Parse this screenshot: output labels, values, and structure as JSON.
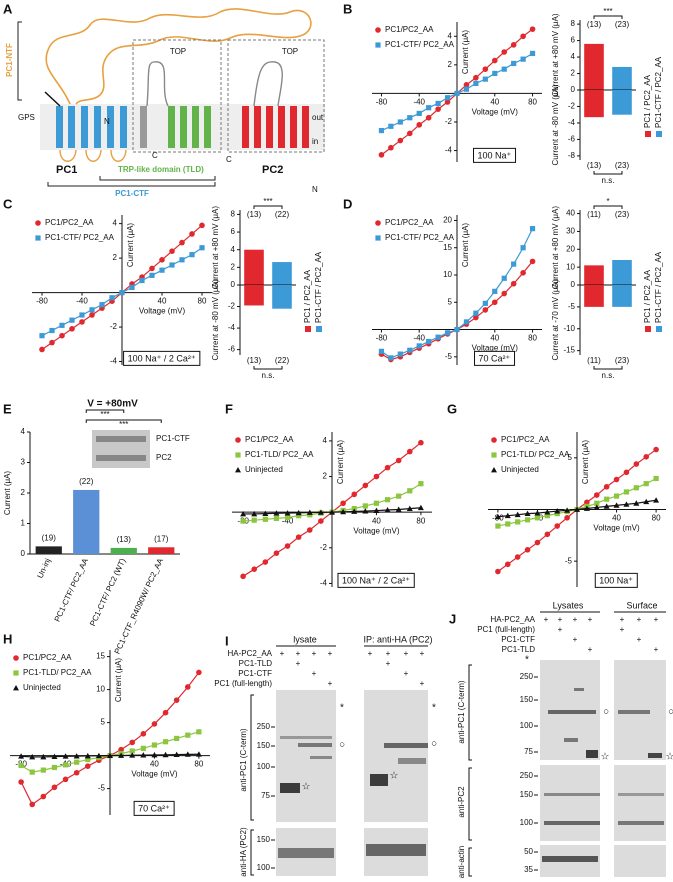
{
  "panel_labels": [
    "A",
    "B",
    "C",
    "D",
    "E",
    "F",
    "G",
    "H",
    "I",
    "J"
  ],
  "diagram": {
    "texts": [
      "PC1-NTF",
      "N",
      "GPS",
      "TOP",
      "TOP",
      "out",
      "in",
      "PC1",
      "PC2",
      "TRP-like domain (TLD)",
      "C",
      "C",
      "N",
      "PC1-CTF"
    ]
  },
  "chart_data": [
    {
      "type": "line",
      "xlabel": "Voltage (mV)",
      "ylabel": "Current (μA)",
      "annotation": "100 Na⁺",
      "xlim": [
        -90,
        90
      ],
      "ylim": [
        -4.8,
        5
      ],
      "xticks": [
        -80,
        -40,
        40,
        80
      ],
      "yticks": [
        -4,
        -2,
        2,
        4
      ],
      "x": [
        -80,
        -70,
        -60,
        -50,
        -40,
        -30,
        -20,
        -10,
        0,
        10,
        20,
        30,
        40,
        50,
        60,
        70,
        80
      ],
      "series": [
        {
          "name": "PC1/PC2_AA",
          "color": "#e0282e",
          "marker": "circle",
          "values": [
            -4.3,
            -3.8,
            -3.3,
            -2.8,
            -2.2,
            -1.7,
            -1.1,
            -0.6,
            0,
            0.6,
            1.1,
            1.7,
            2.3,
            2.9,
            3.4,
            4.0,
            4.5
          ]
        },
        {
          "name": "PC1-CTF/ PC2_AA",
          "color": "#3c9ad6",
          "marker": "square",
          "values": [
            -2.6,
            -2.3,
            -2.0,
            -1.7,
            -1.4,
            -1.0,
            -0.7,
            -0.3,
            0,
            0.3,
            0.7,
            1.0,
            1.4,
            1.7,
            2.1,
            2.4,
            2.8
          ]
        }
      ]
    },
    {
      "type": "bar",
      "ylabel": "Current at +80 mV (μA)",
      "categories": [
        null,
        null
      ],
      "values": [
        5.6,
        2.8
      ],
      "colors": [
        "#e0282e",
        "#3c9ad6"
      ],
      "ylim": [
        0,
        8.5
      ],
      "yticks": [
        0,
        2,
        4,
        6,
        8
      ],
      "n_labels": [
        "(13)",
        "(23)"
      ],
      "significance": "***",
      "legend": [
        {
          "name": "PC1 / PC2_AA",
          "color": "#e0282e"
        },
        {
          "name": "PC1-CTF / PC2_AA",
          "color": "#3c9ad6"
        }
      ]
    },
    {
      "type": "bar",
      "ylabel": "Current at -80 mV (μA)",
      "categories": [
        null,
        null
      ],
      "values": [
        -3.3,
        -3.0
      ],
      "colors": [
        "#e0282e",
        "#3c9ad6"
      ],
      "ylim": [
        -8.5,
        0
      ],
      "yticks": [
        -2,
        -4,
        -6,
        -8
      ],
      "n_labels": [
        "(13)",
        "(23)"
      ],
      "significance": "n.s."
    },
    {
      "type": "line",
      "xlabel": "Voltage (mV)",
      "ylabel": "Current (μA)",
      "annotation": "100 Na⁺ / 2 Ca²⁺",
      "xlim": [
        -90,
        90
      ],
      "ylim": [
        -4.2,
        4.5
      ],
      "xticks": [
        -80,
        -40,
        40,
        80
      ],
      "yticks": [
        -4,
        -2,
        2,
        4
      ],
      "x": [
        -80,
        -70,
        -60,
        -50,
        -40,
        -30,
        -20,
        -10,
        0,
        10,
        20,
        30,
        40,
        50,
        60,
        70,
        80
      ],
      "series": [
        {
          "name": "PC1/PC2_AA",
          "color": "#e0282e",
          "marker": "circle",
          "values": [
            -3.3,
            -2.9,
            -2.5,
            -2.1,
            -1.7,
            -1.3,
            -0.9,
            -0.5,
            0,
            0.5,
            0.9,
            1.4,
            1.9,
            2.4,
            2.9,
            3.4,
            3.9
          ]
        },
        {
          "name": "PC1-CTF/ PC2_AA",
          "color": "#3c9ad6",
          "marker": "square",
          "values": [
            -2.5,
            -2.2,
            -1.9,
            -1.6,
            -1.3,
            -1,
            -0.7,
            -0.3,
            0,
            0.3,
            0.7,
            1,
            1.3,
            1.6,
            1.9,
            2.2,
            2.6
          ]
        }
      ]
    },
    {
      "type": "bar",
      "ylabel": "Current at +80 mV (μA)",
      "categories": [
        null,
        null
      ],
      "values": [
        4.0,
        2.6
      ],
      "colors": [
        "#e0282e",
        "#3c9ad6"
      ],
      "ylim": [
        0,
        8.5
      ],
      "yticks": [
        0,
        2,
        4,
        6,
        8
      ],
      "n_labels": [
        "(13)",
        "(22)"
      ],
      "significance": "***",
      "legend": [
        {
          "name": "PC1 / PC2_AA",
          "color": "#e0282e"
        },
        {
          "name": "PC1-CTF / PC2_AA",
          "color": "#3c9ad6"
        }
      ]
    },
    {
      "type": "bar",
      "ylabel": "Current at -80 mV (μA)",
      "categories": [
        null,
        null
      ],
      "values": [
        -1.9,
        -2.2
      ],
      "colors": [
        "#e0282e",
        "#3c9ad6"
      ],
      "ylim": [
        -6.5,
        0
      ],
      "yticks": [
        -2,
        -4,
        -6
      ],
      "n_labels": [
        "(13)",
        "(22)"
      ],
      "significance": "n.s."
    },
    {
      "type": "line",
      "xlabel": "Voltage (mV)",
      "ylabel": "Current (μA)",
      "annotation": "70 Ca²⁺",
      "xlim": [
        -90,
        90
      ],
      "ylim": [
        -6.5,
        21
      ],
      "xticks": [
        -80,
        -40,
        40,
        80
      ],
      "yticks": [
        -5,
        5,
        10,
        15,
        20
      ],
      "x": [
        -80,
        -70,
        -60,
        -50,
        -40,
        -30,
        -20,
        -10,
        0,
        10,
        20,
        30,
        40,
        50,
        60,
        70,
        80
      ],
      "series": [
        {
          "name": "PC1/PC2_AA",
          "color": "#e0282e",
          "marker": "circle",
          "values": [
            -4.5,
            -5.5,
            -5,
            -4.2,
            -3.4,
            -2.6,
            -1.7,
            -0.8,
            0,
            1,
            2.2,
            3.6,
            5,
            6.6,
            8.4,
            10.4,
            12.5
          ]
        },
        {
          "name": "PC1-CTF/ PC2_AA",
          "color": "#3c9ad6",
          "marker": "square",
          "values": [
            -4,
            -5.2,
            -4.5,
            -3.8,
            -3,
            -2.2,
            -1.4,
            -0.6,
            0,
            1.4,
            3,
            4.8,
            7,
            9.4,
            12,
            15,
            18.5
          ]
        }
      ]
    },
    {
      "type": "bar",
      "ylabel": "Current at +80 mV (μA)",
      "categories": [
        null,
        null
      ],
      "values": [
        11,
        14
      ],
      "colors": [
        "#e0282e",
        "#3c9ad6"
      ],
      "ylim": [
        0,
        42
      ],
      "yticks": [
        0,
        10,
        20,
        30,
        40
      ],
      "n_labels": [
        "(11)",
        "(23)"
      ],
      "significance": "*",
      "legend": [
        {
          "name": "PC1 / PC2_AA",
          "color": "#e0282e"
        },
        {
          "name": "PC1-CTF / PC2_AA",
          "color": "#3c9ad6"
        }
      ]
    },
    {
      "type": "bar",
      "ylabel": "Current at -70 mV (μA)",
      "categories": [
        null,
        null
      ],
      "values": [
        -5,
        -5
      ],
      "colors": [
        "#e0282e",
        "#3c9ad6"
      ],
      "ylim": [
        -16,
        0
      ],
      "yticks": [
        -5,
        -10,
        -15
      ],
      "n_labels": [
        "(11)",
        "(23)"
      ],
      "significance": "n.s."
    },
    {
      "type": "bar",
      "title": "V = +80mV",
      "ylabel": "Current (μA)",
      "categories": [
        "Un-inj",
        "PC1-CTF/ PC2_AA",
        "PC1-CTF/ PC2 (WT)",
        "PC1-CTF_R4090W/ PC2_AA"
      ],
      "values": [
        0.25,
        2.1,
        0.2,
        0.22
      ],
      "colors": [
        "#222222",
        "#5b8fd6",
        "#4caf50",
        "#e0282e"
      ],
      "ylim": [
        0,
        4
      ],
      "yticks": [
        0,
        1,
        2,
        3,
        4
      ],
      "n_labels": [
        "(19)",
        "(22)",
        "(13)",
        "(17)"
      ],
      "significance": [
        "***",
        "***"
      ],
      "blot_labels": [
        "PC1-CTF",
        "PC2"
      ]
    },
    {
      "type": "line",
      "xlabel": "Voltage (mV)",
      "ylabel": "Current (μA)",
      "annotation": "100 Na⁺ / 2 Ca²⁺",
      "xlim": [
        -90,
        90
      ],
      "ylim": [
        -4.2,
        4.5
      ],
      "xticks": [
        -80,
        -40,
        40,
        80
      ],
      "yticks": [
        -4,
        -2,
        2,
        4
      ],
      "x": [
        -80,
        -70,
        -60,
        -50,
        -40,
        -30,
        -20,
        -10,
        0,
        10,
        20,
        30,
        40,
        50,
        60,
        70,
        80
      ],
      "series": [
        {
          "name": "PC1/PC2_AA",
          "color": "#e0282e",
          "marker": "circle",
          "values": [
            -3.6,
            -3.2,
            -2.8,
            -2.3,
            -1.9,
            -1.4,
            -1,
            -0.5,
            0,
            0.5,
            1,
            1.5,
            2,
            2.5,
            2.9,
            3.4,
            3.9
          ]
        },
        {
          "name": "PC1-TLD/ PC2_AA",
          "color": "#8cc63f",
          "marker": "square",
          "values": [
            -0.5,
            -0.45,
            -0.4,
            -0.35,
            -0.3,
            -0.2,
            -0.15,
            -0.05,
            0,
            0.1,
            0.2,
            0.35,
            0.5,
            0.7,
            0.9,
            1.2,
            1.6
          ]
        },
        {
          "name": "Uninjected",
          "color": "#111111",
          "marker": "triangle",
          "values": [
            -0.1,
            -0.1,
            -0.08,
            -0.06,
            -0.05,
            -0.04,
            -0.02,
            -0.01,
            0,
            0.02,
            0.04,
            0.06,
            0.09,
            0.12,
            0.15,
            0.2,
            0.25
          ]
        }
      ]
    },
    {
      "type": "line",
      "xlabel": "Voltage (mV)",
      "ylabel": "Current (μA)",
      "annotation": "100 Na⁺",
      "xlim": [
        -90,
        90
      ],
      "ylim": [
        -7.5,
        7.5
      ],
      "xticks": [
        -80,
        -40,
        40,
        80
      ],
      "yticks": [
        -5,
        5
      ],
      "x": [
        -80,
        -70,
        -60,
        -50,
        -40,
        -30,
        -20,
        -10,
        0,
        10,
        20,
        30,
        40,
        50,
        60,
        70,
        80
      ],
      "series": [
        {
          "name": "PC1/PC2_AA",
          "color": "#e0282e",
          "marker": "circle",
          "values": [
            -6,
            -5.3,
            -4.6,
            -3.9,
            -3.2,
            -2.4,
            -1.6,
            -0.8,
            0,
            0.7,
            1.4,
            2.2,
            2.9,
            3.6,
            4.4,
            5.1,
            5.8
          ]
        },
        {
          "name": "PC1-TLD/ PC2_AA",
          "color": "#8cc63f",
          "marker": "square",
          "values": [
            -1.6,
            -1.4,
            -1.2,
            -1,
            -0.8,
            -0.6,
            -0.4,
            -0.2,
            0,
            0.3,
            0.6,
            1,
            1.3,
            1.7,
            2.1,
            2.5,
            3.0
          ]
        },
        {
          "name": "Uninjected",
          "color": "#111111",
          "marker": "triangle",
          "values": [
            -0.7,
            -0.6,
            -0.5,
            -0.4,
            -0.35,
            -0.25,
            -0.15,
            -0.08,
            0,
            0.1,
            0.2,
            0.3,
            0.4,
            0.5,
            0.6,
            0.75,
            0.9
          ]
        }
      ]
    },
    {
      "type": "line",
      "xlabel": "Voltage (mV)",
      "ylabel": "Current (μA)",
      "annotation": "70 Ca²⁺",
      "xlim": [
        -90,
        90
      ],
      "ylim": [
        -9,
        16
      ],
      "xticks": [
        -80,
        -40,
        40,
        80
      ],
      "yticks": [
        -5,
        5,
        10,
        15
      ],
      "x": [
        -80,
        -70,
        -60,
        -50,
        -40,
        -30,
        -20,
        -10,
        0,
        10,
        20,
        30,
        40,
        50,
        60,
        70,
        80
      ],
      "series": [
        {
          "name": "PC1/PC2_AA",
          "color": "#e0282e",
          "marker": "circle",
          "values": [
            -4,
            -7.4,
            -6.2,
            -4.8,
            -3.6,
            -2.6,
            -1.6,
            -0.7,
            0,
            0.9,
            2,
            3.3,
            4.8,
            6.5,
            8.4,
            10.4,
            12.6
          ]
        },
        {
          "name": "PC1-TLD/ PC2_AA",
          "color": "#8cc63f",
          "marker": "square",
          "values": [
            -1.5,
            -2.5,
            -2.2,
            -1.8,
            -1.4,
            -1,
            -0.6,
            -0.3,
            0,
            0.3,
            0.7,
            1.1,
            1.6,
            2.1,
            2.6,
            3.1,
            3.6
          ]
        },
        {
          "name": "Uninjected",
          "color": "#111111",
          "marker": "triangle",
          "values": [
            -0.1,
            -0.2,
            -0.2,
            -0.15,
            -0.1,
            -0.08,
            -0.05,
            -0.02,
            0,
            0.02,
            0.05,
            0.08,
            0.1,
            0.12,
            0.15,
            0.18,
            0.2
          ]
        }
      ]
    }
  ],
  "blot_I": {
    "headers": [
      "lysate",
      "IP: anti-HA (PC2)"
    ],
    "rows": [
      {
        "name": "HA-PC2_AA",
        "marks": [
          "+",
          "+",
          "+",
          "+",
          "+",
          "+",
          "+",
          "+"
        ]
      },
      {
        "name": "PC1-TLD",
        "marks": [
          null,
          "+",
          null,
          null,
          null,
          "+",
          null,
          null
        ]
      },
      {
        "name": "PC1-CTF",
        "marks": [
          null,
          null,
          "+",
          null,
          null,
          null,
          "+",
          null
        ]
      },
      {
        "name": "PC1 (full-length)",
        "marks": [
          null,
          null,
          null,
          "+",
          null,
          null,
          null,
          "+"
        ]
      }
    ],
    "antibodies": [
      "anti-PC1 (C-term)",
      "anti-HA (PC2)"
    ],
    "mw": [
      "250",
      "150",
      "100",
      "75",
      "150",
      "100"
    ],
    "markers": [
      "*",
      "○",
      "☆",
      "*",
      "○",
      "☆"
    ]
  },
  "blot_J": {
    "headers": [
      "Lysates",
      "Surface"
    ],
    "rows": [
      {
        "name": "HA-PC2_AA",
        "marks": [
          "+",
          "+",
          "+",
          "+",
          "+",
          "+",
          "+"
        ]
      },
      {
        "name": "PC1 (full-length)",
        "marks": [
          null,
          "+",
          null,
          null,
          "+",
          null,
          null
        ]
      },
      {
        "name": "PC1-CTF",
        "marks": [
          null,
          null,
          "+",
          null,
          null,
          "+",
          null
        ]
      },
      {
        "name": "PC1-TLD",
        "marks": [
          null,
          null,
          null,
          "+",
          null,
          null,
          "+"
        ]
      }
    ],
    "antibodies": [
      "anti-PC1 (C-term)",
      "anti-PC2",
      "anti-actin"
    ],
    "mw": [
      "250",
      "150",
      "100",
      "75",
      "250",
      "150",
      "100",
      "50",
      "35"
    ],
    "markers": [
      "*",
      "○",
      "☆",
      "○",
      "☆"
    ]
  }
}
